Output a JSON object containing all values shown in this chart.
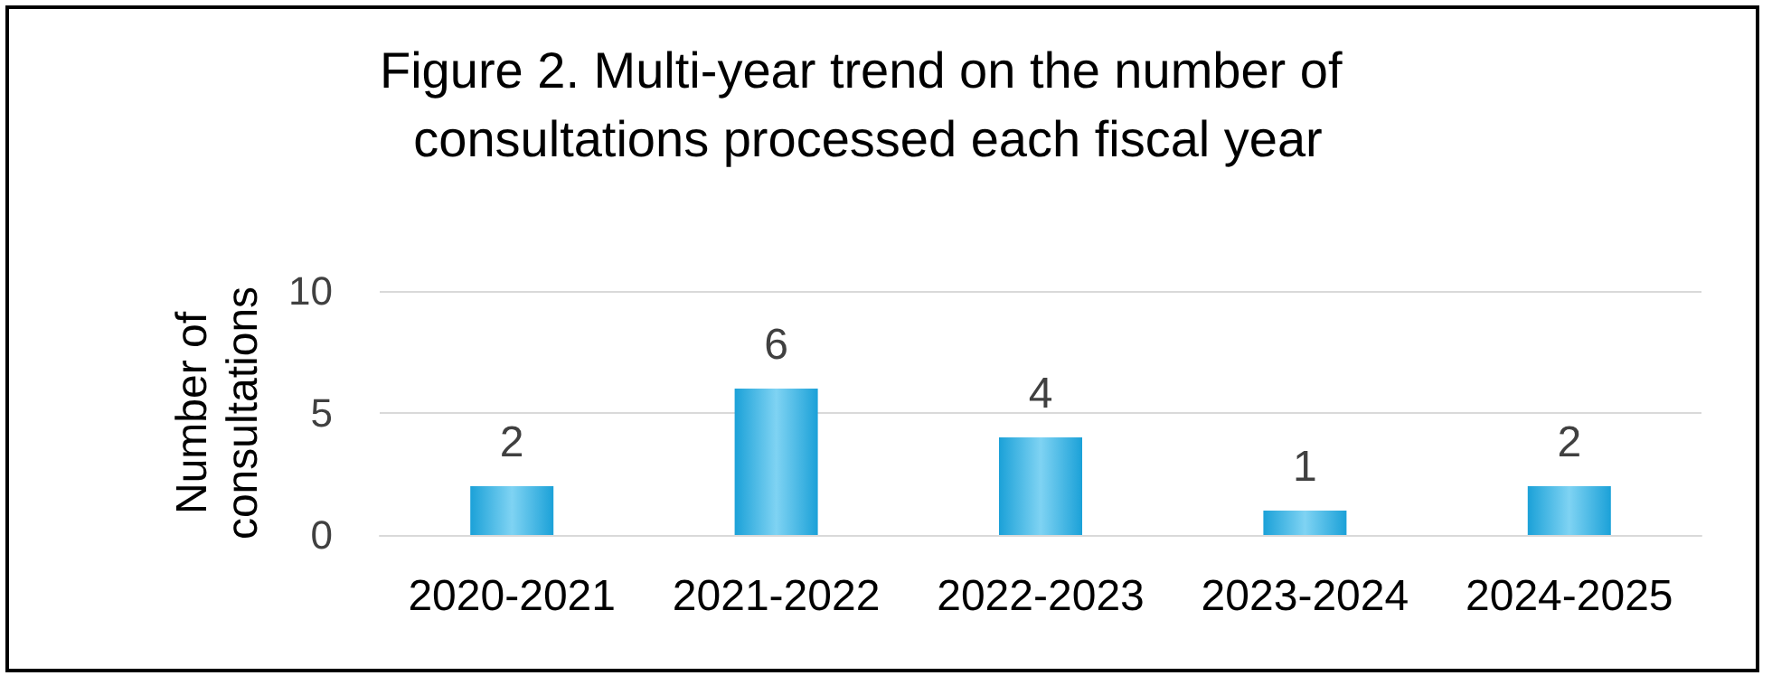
{
  "chart_data": {
    "type": "bar",
    "title": "Figure 2. Multi-year trend on the number of consultations processed each fiscal year",
    "ylabel": "Number of consultations",
    "categories": [
      "2020-2021",
      "2021-2022",
      "2022-2023",
      "2023-2024",
      "2024-2025"
    ],
    "values": [
      2,
      6,
      4,
      1,
      2
    ],
    "color": "#1ba1d8",
    "ylim": [
      0,
      10
    ],
    "yticks": [
      0,
      5,
      10
    ],
    "grid": "y",
    "data_labels": true
  }
}
